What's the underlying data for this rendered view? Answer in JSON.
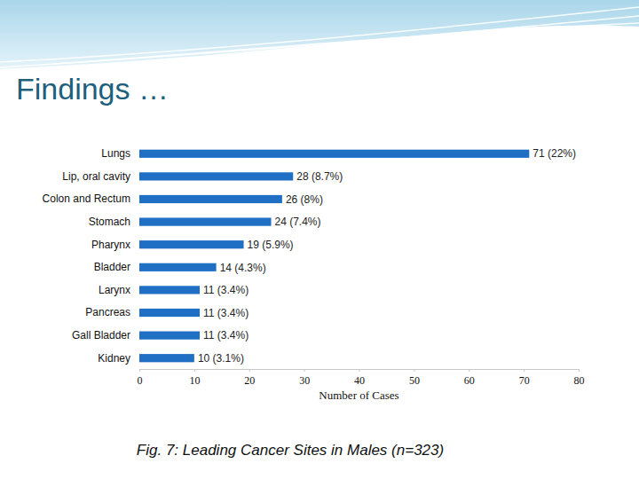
{
  "slide": {
    "title": "Findings …"
  },
  "chart_data": {
    "type": "bar",
    "orientation": "horizontal",
    "title": "Fig. 7: Leading Cancer Sites in Males (n=323)",
    "xlabel": "Number of Cases",
    "categories": [
      "Lungs",
      "Lip, oral cavity",
      "Colon and Rectum",
      "Stomach",
      "Pharynx",
      "Bladder",
      "Larynx",
      "Pancreas",
      "Gall Bladder",
      "Kidney"
    ],
    "values": [
      71,
      28,
      26,
      24,
      19,
      14,
      11,
      11,
      11,
      10
    ],
    "value_labels": [
      "71 (22%)",
      "28 (8.7%)",
      "26 (8%)",
      "24 (7.4%)",
      "19 (5.9%)",
      "14 (4.3%)",
      "11 (3.4%)",
      "11 (3.4%)",
      "11 (3.4%)",
      "10 (3.1%)"
    ],
    "color": "#1f6fc5",
    "xlim": [
      0,
      80
    ],
    "xticks": [
      0,
      10,
      20,
      30,
      40,
      50,
      60,
      70,
      80
    ],
    "grid": false,
    "data_labels": true
  }
}
